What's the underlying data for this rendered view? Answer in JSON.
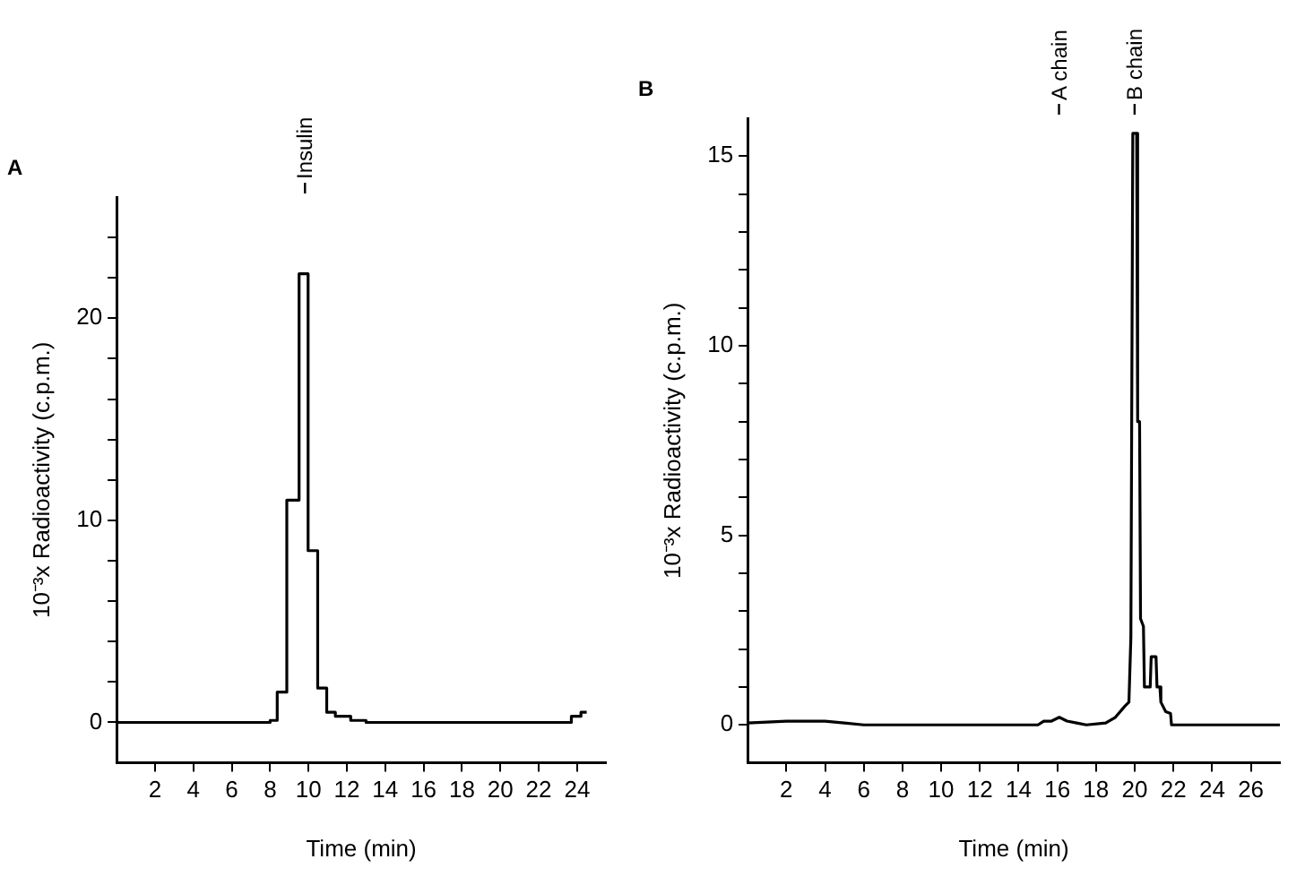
{
  "chart_data": [
    {
      "type": "step",
      "title": "A",
      "xlabel": "Time (min)",
      "ylabel": "10⁻³x Radioactivity (c.p.m.)",
      "xlim": [
        0,
        25.5
      ],
      "ylim": [
        -2,
        26
      ],
      "xticks": [
        2,
        4,
        6,
        8,
        10,
        12,
        14,
        16,
        18,
        20,
        22,
        24
      ],
      "yticks": [
        0,
        {
          "value": 2,
          "label": null
        },
        {
          "value": 4,
          "label": null
        },
        {
          "value": 6,
          "label": null
        },
        {
          "value": 8,
          "label": null
        },
        10,
        {
          "value": 12,
          "label": null
        },
        {
          "value": 14,
          "label": null
        },
        {
          "value": 16,
          "label": null
        },
        {
          "value": 18,
          "label": null
        },
        20,
        {
          "value": 22,
          "label": null
        },
        {
          "value": 24,
          "label": null
        }
      ],
      "x": [
        0,
        7,
        8,
        8.37,
        8.87,
        9.51,
        9.98,
        10.48,
        10.95,
        11.4,
        12.2,
        13,
        23.2,
        23.7,
        24.2,
        24.5
      ],
      "series": [
        {
          "color": "#000000",
          "values": [
            0,
            0,
            0.1,
            1.5,
            11,
            22.2,
            8.5,
            1.7,
            0.5,
            0.3,
            0.1,
            0,
            0,
            0.3,
            0.5,
            0.5
          ]
        }
      ],
      "annotations": [
        "Insulin"
      ],
      "grid": false,
      "legend": false,
      "marker": "none",
      "line_style": "solid"
    },
    {
      "type": "line",
      "title": "B",
      "xlabel": "Time (min)",
      "ylabel": "10⁻³x Radioactivity (c.p.m.)",
      "xlim": [
        0,
        27.5
      ],
      "ylim": [
        -1,
        16
      ],
      "xticks": [
        2,
        4,
        6,
        8,
        10,
        12,
        14,
        16,
        18,
        20,
        22,
        24,
        26
      ],
      "yticks": [
        0,
        {
          "value": 1,
          "label": null
        },
        {
          "value": 2,
          "label": null
        },
        {
          "value": 3,
          "label": null
        },
        {
          "value": 4,
          "label": null
        },
        5,
        {
          "value": 6,
          "label": null
        },
        {
          "value": 7,
          "label": null
        },
        {
          "value": 8,
          "label": null
        },
        {
          "value": 9,
          "label": null
        },
        10,
        {
          "value": 11,
          "label": null
        },
        {
          "value": 12,
          "label": null
        },
        {
          "value": 13,
          "label": null
        },
        {
          "value": 14,
          "label": null
        },
        15
      ],
      "x": [
        0,
        2,
        4,
        5,
        6,
        15,
        15.3,
        15.7,
        16.1,
        16.5,
        17,
        17.5,
        18.5,
        19,
        19.5,
        19.7,
        19.8,
        19.9,
        20.1,
        20.15,
        20.25,
        20.3,
        20.45,
        20.5,
        20.8,
        20.85,
        21.1,
        21.15,
        21.3,
        21.35,
        21.6,
        21.85,
        21.9,
        27.5
      ],
      "series": [
        {
          "color": "#000000",
          "values": [
            0.05,
            0.1,
            0.1,
            0.05,
            0,
            0,
            0.1,
            0.1,
            0.2,
            0.1,
            0.05,
            0,
            0.05,
            0.2,
            0.5,
            0.6,
            2.3,
            15.6,
            15.6,
            8,
            8,
            2.8,
            2.6,
            1,
            1,
            1.8,
            1.8,
            1,
            1,
            0.6,
            0.35,
            0.3,
            0,
            0
          ]
        }
      ],
      "annotations": [
        "A chain",
        "B chain"
      ],
      "grid": false,
      "legend": false,
      "marker": "none",
      "line_style": "solid"
    }
  ]
}
